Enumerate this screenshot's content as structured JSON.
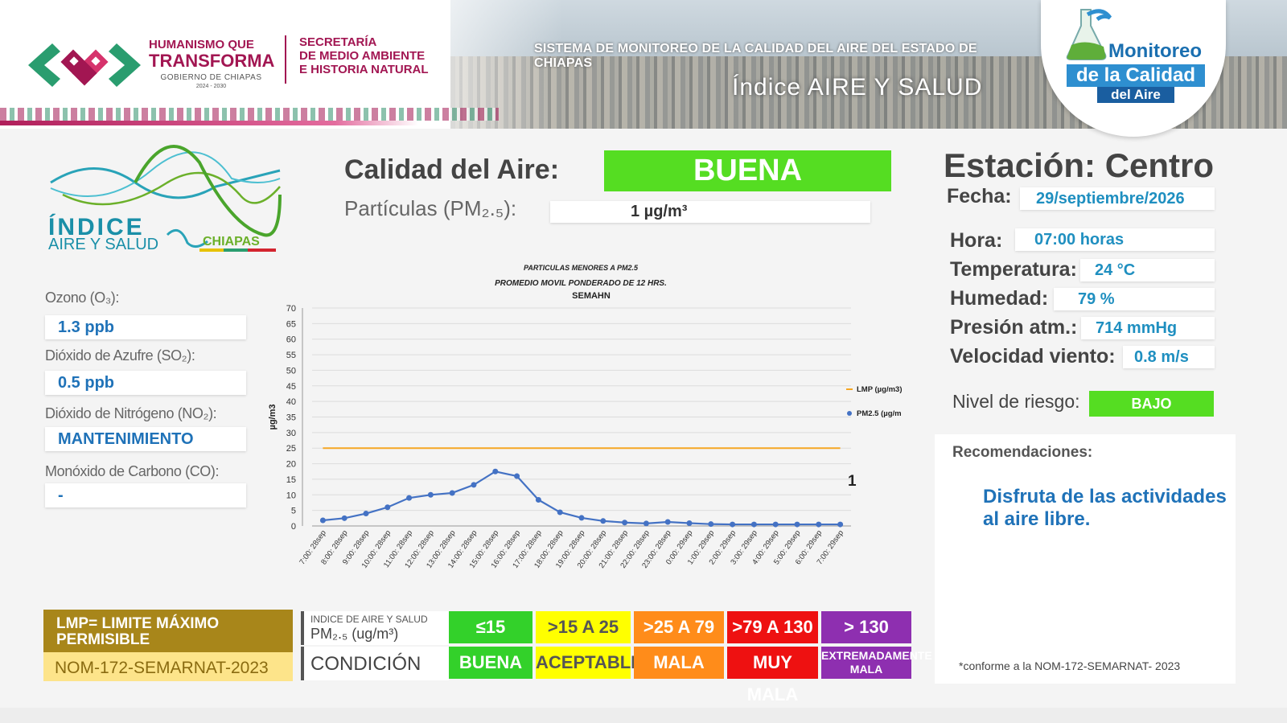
{
  "header": {
    "gov_line1": "HUMANISMO QUE",
    "gov_line2": "TRANSFORMA",
    "gov_line3": "GOBIERNO DE CHIAPAS",
    "gov_years": "2024 - 2030",
    "sec_line1": "SECRETARÍA",
    "sec_line2": "DE MEDIO AMBIENTE",
    "sec_line3": "E HISTORIA NATURAL",
    "system_title": "SISTEMA DE MONITOREO DE LA CALIDAD DEL AIRE DEL ESTADO DE CHIAPAS",
    "index_title": "Índice AIRE Y SALUD",
    "monitor_line1": "Monitoreo",
    "monitor_line2": "de la Calidad",
    "monitor_line3": "del Aire"
  },
  "logo": {
    "indice": "ÍNDICE",
    "aire_salud": "AIRE Y SALUD",
    "chiapas": "CHIAPAS"
  },
  "pollutants": [
    {
      "label": "Ozono (O₃):",
      "value": "1.3 ppb"
    },
    {
      "label": "Dióxido de Azufre  (SO₂):",
      "value": "0.5 ppb"
    },
    {
      "label": "Dióxido de Nitrógeno (NO₂):",
      "value": "MANTENIMIENTO"
    },
    {
      "label": "Monóxido de Carbono (CO):",
      "value": "-"
    }
  ],
  "quality": {
    "label": "Calidad del Aire:",
    "value": "BUENA",
    "pm_label": "Partículas (PM₂.₅):",
    "pm_value": "1 µg/m³",
    "color": "#55dd22"
  },
  "station": {
    "title": "Estación: Centro",
    "fecha_label": "Fecha:",
    "fecha": "29/septiembre/2026",
    "hora_label": "Hora:",
    "hora": "07:00 horas",
    "temp_label": "Temperatura:",
    "temp": "24 °C",
    "hum_label": "Humedad:",
    "hum": "79 %",
    "pres_label": "Presión atm.:",
    "pres": "714 mmHg",
    "wind_label": "Velocidad viento:",
    "wind": "0.8 m/s",
    "risk_label": "Nivel de riesgo:",
    "risk": "BAJO",
    "rec_label": "Recomendaciones:",
    "rec_text": "Disfruta de las actividades al aire libre.",
    "note": "*conforme a la NOM-172-SEMARNAT- 2023"
  },
  "legend": {
    "lmp": "LMP= LIMITE MÁXIMO PERMISIBLE",
    "nom": "NOM-172-SEMARNAT-2023",
    "head1": "INDICE DE AIRE Y SALUD",
    "head1b": "PM₂.₅ (ug/m³)",
    "head2": "CONDICIÓN",
    "ranges": [
      "≤15",
      ">15 A 25",
      ">25 A 79",
      ">79 A 130",
      "> 130"
    ],
    "conditions": [
      "BUENA",
      "ACEPTABLE",
      "MALA",
      "MUY MALA",
      "EXTREMADAMENTE MALA"
    ],
    "colors": [
      "#33d12a",
      "#ffff00",
      "#ff8c1a",
      "#ee1111",
      "#8e2fb0"
    ],
    "text_colors": [
      "#ffffff",
      "#555555",
      "#ffffff",
      "#ffffff",
      "#ffffff"
    ]
  },
  "chart_data": {
    "type": "line",
    "title": "PARTICULAS MENORES A PM2.5",
    "subtitle": "PROMEDIO MOVIL PONDERADO DE 12 HRS.",
    "source": "SEMAHN",
    "ylabel": "µg/m3",
    "ylim": [
      0,
      70
    ],
    "yticks": [
      0,
      5,
      10,
      15,
      20,
      25,
      30,
      35,
      40,
      45,
      50,
      55,
      60,
      65,
      70
    ],
    "grid": true,
    "legend_position": "right",
    "last_value_label": "1",
    "categories": [
      "7:00: 28sep",
      "8:00: 28sep",
      "9:00: 28sep",
      "10:00: 28sep",
      "11:00: 28sep",
      "12:00: 28sep",
      "13:00: 28sep",
      "14:00: 28sep",
      "15:00: 28sep",
      "16:00: 28sep",
      "17:00: 28sep",
      "18:00: 28sep",
      "19:00: 28sep",
      "20:00: 28sep",
      "21:00: 28sep",
      "22:00: 28sep",
      "23:00: 28sep",
      "0:00: 29sep",
      "1:00: 29sep",
      "2:00: 29sep",
      "3:00: 29sep",
      "4:00: 29sep",
      "5:00: 29sep",
      "6:00: 29sep",
      "7:00: 29sep"
    ],
    "series": [
      {
        "name": "LMP (µg/m3)",
        "color": "#f5a623",
        "values": [
          25,
          25,
          25,
          25,
          25,
          25,
          25,
          25,
          25,
          25,
          25,
          25,
          25,
          25,
          25,
          25,
          25,
          25,
          25,
          25,
          25,
          25,
          25,
          25,
          25
        ]
      },
      {
        "name": "PM2.5  (µg/m",
        "color": "#4472c4",
        "values": [
          1.8,
          2.5,
          4,
          6,
          9,
          10,
          10.6,
          13.2,
          17.5,
          16,
          8.4,
          4.4,
          2.6,
          1.6,
          1.1,
          0.8,
          1.3,
          0.9,
          0.6,
          0.5,
          0.5,
          0.5,
          0.5,
          0.5,
          0.5
        ]
      }
    ]
  }
}
